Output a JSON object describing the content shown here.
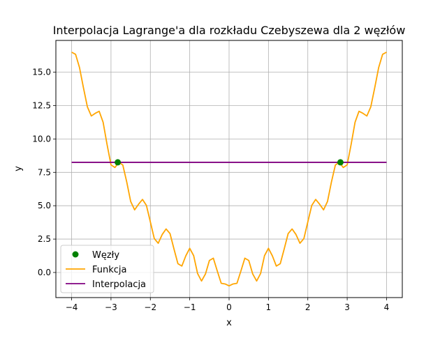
{
  "chart_data": {
    "type": "line",
    "title": "Interpolacja Lagrange'a dla rozkładu Czebyszewa dla 2 węzłów",
    "xlabel": "x",
    "ylabel": "y",
    "xlim": [
      -4.4,
      4.4
    ],
    "ylim": [
      -1.88,
      17.38
    ],
    "grid": true,
    "legend_position": "lower-left",
    "x_ticks": [
      -4,
      -3,
      -2,
      -1,
      0,
      1,
      2,
      3,
      4
    ],
    "x_tick_labels": [
      "−4",
      "−3",
      "−2",
      "−1",
      "0",
      "1",
      "2",
      "3",
      "4"
    ],
    "y_ticks": [
      0.0,
      2.5,
      5.0,
      7.5,
      10.0,
      12.5,
      15.0
    ],
    "y_tick_labels": [
      "0.0",
      "2.5",
      "5.0",
      "7.5",
      "10.0",
      "12.5",
      "15.0"
    ],
    "series": [
      {
        "name": "Węzły",
        "kind": "scatter",
        "color": "#008000",
        "x": [
          -2.828,
          2.828
        ],
        "y": [
          8.25,
          8.25
        ]
      },
      {
        "name": "Funkcja",
        "kind": "line",
        "color": "#FFA500",
        "x": [
          -4.0,
          -3.9,
          -3.8,
          -3.7,
          -3.6,
          -3.5,
          -3.4,
          -3.3,
          -3.2,
          -3.1,
          -3.0,
          -2.9,
          -2.8,
          -2.7,
          -2.6,
          -2.5,
          -2.4,
          -2.3,
          -2.2,
          -2.1,
          -2.0,
          -1.9,
          -1.8,
          -1.7,
          -1.6,
          -1.5,
          -1.4,
          -1.3,
          -1.2,
          -1.1,
          -1.0,
          -0.9,
          -0.8,
          -0.7,
          -0.6,
          -0.5,
          -0.4,
          -0.3,
          -0.2,
          -0.1,
          0.0,
          0.1,
          0.2,
          0.3,
          0.4,
          0.5,
          0.6,
          0.7,
          0.8,
          0.9,
          1.0,
          1.1,
          1.2,
          1.3,
          1.4,
          1.5,
          1.6,
          1.7,
          1.8,
          1.9,
          2.0,
          2.1,
          2.2,
          2.3,
          2.4,
          2.5,
          2.6,
          2.7,
          2.8,
          2.9,
          3.0,
          3.1,
          3.2,
          3.3,
          3.4,
          3.5,
          3.6,
          3.7,
          3.8,
          3.9,
          4.0
        ],
        "y": [
          16.5,
          16.34,
          15.35,
          13.84,
          12.41,
          11.72,
          11.92,
          12.07,
          11.25,
          9.59,
          8.06,
          7.86,
          8.25,
          8.05,
          6.78,
          5.32,
          4.69,
          5.11,
          5.47,
          5.02,
          3.79,
          2.54,
          2.19,
          2.84,
          3.26,
          2.91,
          1.76,
          0.66,
          0.48,
          1.24,
          1.81,
          1.26,
          -0.08,
          -0.64,
          -0.11,
          0.9,
          1.07,
          0.11,
          -0.81,
          -0.86,
          -1.0,
          -0.86,
          -0.81,
          0.11,
          1.07,
          0.9,
          -0.11,
          -0.64,
          -0.08,
          1.26,
          1.81,
          1.24,
          0.48,
          0.66,
          1.76,
          2.91,
          3.26,
          2.84,
          2.19,
          2.54,
          3.79,
          5.02,
          5.47,
          5.11,
          4.69,
          5.32,
          6.78,
          8.05,
          8.25,
          7.86,
          8.06,
          9.59,
          11.25,
          12.07,
          11.92,
          11.72,
          12.41,
          13.84,
          15.35,
          16.34,
          16.5
        ]
      },
      {
        "name": "Interpolacja",
        "kind": "line",
        "color": "#800080",
        "x": [
          -4.0,
          4.0
        ],
        "y": [
          8.25,
          8.25
        ]
      }
    ]
  }
}
